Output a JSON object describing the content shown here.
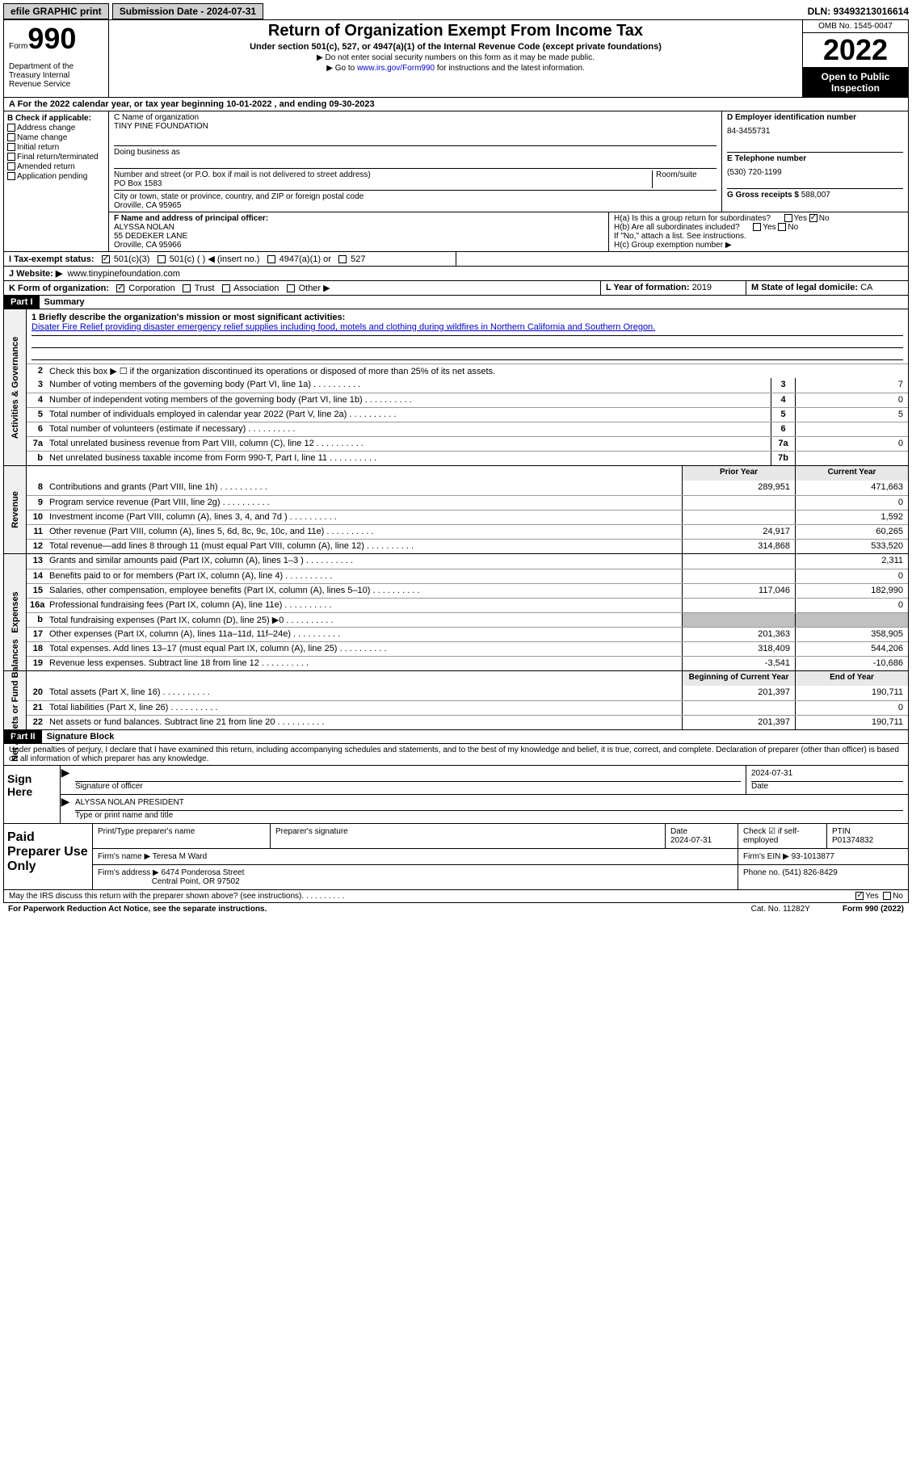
{
  "topbar": {
    "efile": "efile GRAPHIC print",
    "submission": "Submission Date - 2024-07-31",
    "dln": "DLN: 93493213016614"
  },
  "header": {
    "form_word": "Form",
    "form_num": "990",
    "dept": "Department of the Treasury\nInternal Revenue Service",
    "title": "Return of Organization Exempt From Income Tax",
    "sub": "Under section 501(c), 527, or 4947(a)(1) of the Internal Revenue Code (except private foundations)",
    "note1": "▶ Do not enter social security numbers on this form as it may be made public.",
    "note2_pre": "▶ Go to ",
    "note2_link": "www.irs.gov/Form990",
    "note2_post": " for instructions and the latest information.",
    "omb": "OMB No. 1545-0047",
    "year": "2022",
    "open": "Open to Public Inspection"
  },
  "rowA": "A For the 2022 calendar year, or tax year beginning 10-01-2022    , and ending 09-30-2023",
  "colB": {
    "hdr": "B Check if applicable:",
    "items": [
      "Address change",
      "Name change",
      "Initial return",
      "Final return/terminated",
      "Amended return",
      "Application pending"
    ]
  },
  "rowC": {
    "name_lbl": "C Name of organization",
    "name": "TINY PINE FOUNDATION",
    "dba_lbl": "Doing business as",
    "addr_lbl": "Number and street (or P.O. box if mail is not delivered to street address)",
    "room_lbl": "Room/suite",
    "addr": "PO Box 1583",
    "city_lbl": "City or town, state or province, country, and ZIP or foreign postal code",
    "city": "Oroville, CA  95965"
  },
  "colD": {
    "ein_lbl": "D Employer identification number",
    "ein": "84-3455731",
    "phone_lbl": "E Telephone number",
    "phone": "(530) 720-1199",
    "gross_lbl": "G Gross receipts $",
    "gross": "588,007"
  },
  "rowF": {
    "lbl": "F Name and address of principal officer:",
    "name": "ALYSSA NOLAN",
    "addr1": "55 DEDEKER LANE",
    "addr2": "Oroville, CA  95966"
  },
  "rowH": {
    "ha": "H(a)  Is this a group return for subordinates?",
    "hb": "H(b)  Are all subordinates included?",
    "hb_note": "If \"No,\" attach a list. See instructions.",
    "hc": "H(c)  Group exemption number ▶"
  },
  "rowI": {
    "lbl": "I  Tax-exempt status:",
    "opts": [
      "501(c)(3)",
      "501(c) (  ) ◀ (insert no.)",
      "4947(a)(1) or",
      "527"
    ]
  },
  "rowJ": {
    "lbl": "J  Website: ▶",
    "val": "www.tinypinefoundation.com"
  },
  "rowK": {
    "lbl": "K Form of organization:",
    "opts": [
      "Corporation",
      "Trust",
      "Association",
      "Other ▶"
    ]
  },
  "rowL": {
    "lbl": "L Year of formation:",
    "val": "2019"
  },
  "rowM": {
    "lbl": "M State of legal domicile:",
    "val": "CA"
  },
  "part1": {
    "hdr": "Part I",
    "title": "Summary",
    "mission_lbl": "1  Briefly describe the organization's mission or most significant activities:",
    "mission": "Disater Fire Relief providing disaster emergency relief supplies including food, motels and clothing during wildfires in Northern California and Southern Oregon.",
    "line2": "Check this box ▶ ☐ if the organization discontinued its operations or disposed of more than 25% of its net assets.",
    "activities": [
      {
        "n": "3",
        "d": "Number of voting members of the governing body (Part VI, line 1a)",
        "b": "3",
        "v": "7"
      },
      {
        "n": "4",
        "d": "Number of independent voting members of the governing body (Part VI, line 1b)",
        "b": "4",
        "v": "0"
      },
      {
        "n": "5",
        "d": "Total number of individuals employed in calendar year 2022 (Part V, line 2a)",
        "b": "5",
        "v": "5"
      },
      {
        "n": "6",
        "d": "Total number of volunteers (estimate if necessary)",
        "b": "6",
        "v": ""
      },
      {
        "n": "7a",
        "d": "Total unrelated business revenue from Part VIII, column (C), line 12",
        "b": "7a",
        "v": "0"
      },
      {
        "n": "b",
        "d": "Net unrelated business taxable income from Form 990-T, Part I, line 11",
        "b": "7b",
        "v": ""
      }
    ],
    "rev_hdr_prior": "Prior Year",
    "rev_hdr_curr": "Current Year",
    "revenue": [
      {
        "n": "8",
        "d": "Contributions and grants (Part VIII, line 1h)",
        "p": "289,951",
        "c": "471,663"
      },
      {
        "n": "9",
        "d": "Program service revenue (Part VIII, line 2g)",
        "p": "",
        "c": "0"
      },
      {
        "n": "10",
        "d": "Investment income (Part VIII, column (A), lines 3, 4, and 7d )",
        "p": "",
        "c": "1,592"
      },
      {
        "n": "11",
        "d": "Other revenue (Part VIII, column (A), lines 5, 6d, 8c, 9c, 10c, and 11e)",
        "p": "24,917",
        "c": "60,265"
      },
      {
        "n": "12",
        "d": "Total revenue—add lines 8 through 11 (must equal Part VIII, column (A), line 12)",
        "p": "314,868",
        "c": "533,520"
      }
    ],
    "expenses": [
      {
        "n": "13",
        "d": "Grants and similar amounts paid (Part IX, column (A), lines 1–3 )",
        "p": "",
        "c": "2,311"
      },
      {
        "n": "14",
        "d": "Benefits paid to or for members (Part IX, column (A), line 4)",
        "p": "",
        "c": "0"
      },
      {
        "n": "15",
        "d": "Salaries, other compensation, employee benefits (Part IX, column (A), lines 5–10)",
        "p": "117,046",
        "c": "182,990"
      },
      {
        "n": "16a",
        "d": "Professional fundraising fees (Part IX, column (A), line 11e)",
        "p": "",
        "c": "0"
      },
      {
        "n": "b",
        "d": "Total fundraising expenses (Part IX, column (D), line 25) ▶0",
        "p": "BLANK",
        "c": "BLANK"
      },
      {
        "n": "17",
        "d": "Other expenses (Part IX, column (A), lines 11a–11d, 11f–24e)",
        "p": "201,363",
        "c": "358,905"
      },
      {
        "n": "18",
        "d": "Total expenses. Add lines 13–17 (must equal Part IX, column (A), line 25)",
        "p": "318,409",
        "c": "544,206"
      },
      {
        "n": "19",
        "d": "Revenue less expenses. Subtract line 18 from line 12",
        "p": "-3,541",
        "c": "-10,686"
      }
    ],
    "na_hdr_beg": "Beginning of Current Year",
    "na_hdr_end": "End of Year",
    "netassets": [
      {
        "n": "20",
        "d": "Total assets (Part X, line 16)",
        "p": "201,397",
        "c": "190,711"
      },
      {
        "n": "21",
        "d": "Total liabilities (Part X, line 26)",
        "p": "",
        "c": "0"
      },
      {
        "n": "22",
        "d": "Net assets or fund balances. Subtract line 21 from line 20",
        "p": "201,397",
        "c": "190,711"
      }
    ]
  },
  "part2": {
    "hdr": "Part II",
    "title": "Signature Block",
    "declare": "Under penalties of perjury, I declare that I have examined this return, including accompanying schedules and statements, and to the best of my knowledge and belief, it is true, correct, and complete. Declaration of preparer (other than officer) is based on all information of which preparer has any knowledge.",
    "sign_here": "Sign Here",
    "sig_officer": "Signature of officer",
    "sig_date": "2024-07-31",
    "date_lbl": "Date",
    "name_title": "ALYSSA NOLAN  PRESIDENT",
    "name_title_lbl": "Type or print name and title",
    "paid_prep": "Paid Preparer Use Only",
    "prep_name_lbl": "Print/Type preparer's name",
    "prep_sig_lbl": "Preparer's signature",
    "prep_date_lbl": "Date",
    "prep_date": "2024-07-31",
    "prep_check_lbl": "Check ☑ if self-employed",
    "ptin_lbl": "PTIN",
    "ptin": "P01374832",
    "firm_name_lbl": "Firm's name    ▶",
    "firm_name": "Teresa M Ward",
    "firm_ein_lbl": "Firm's EIN ▶",
    "firm_ein": "93-1013877",
    "firm_addr_lbl": "Firm's address ▶",
    "firm_addr1": "6474 Ponderosa Street",
    "firm_addr2": "Central Point, OR  97502",
    "phone_lbl": "Phone no.",
    "phone": "(541) 826-8429"
  },
  "footer": {
    "discuss": "May the IRS discuss this return with the preparer shown above? (see instructions)",
    "paperwork": "For Paperwork Reduction Act Notice, see the separate instructions.",
    "cat": "Cat. No. 11282Y",
    "form": "Form 990 (2022)"
  },
  "vlabels": {
    "activities": "Activities & Governance",
    "revenue": "Revenue",
    "expenses": "Expenses",
    "netassets": "Net Assets or Fund Balances"
  }
}
